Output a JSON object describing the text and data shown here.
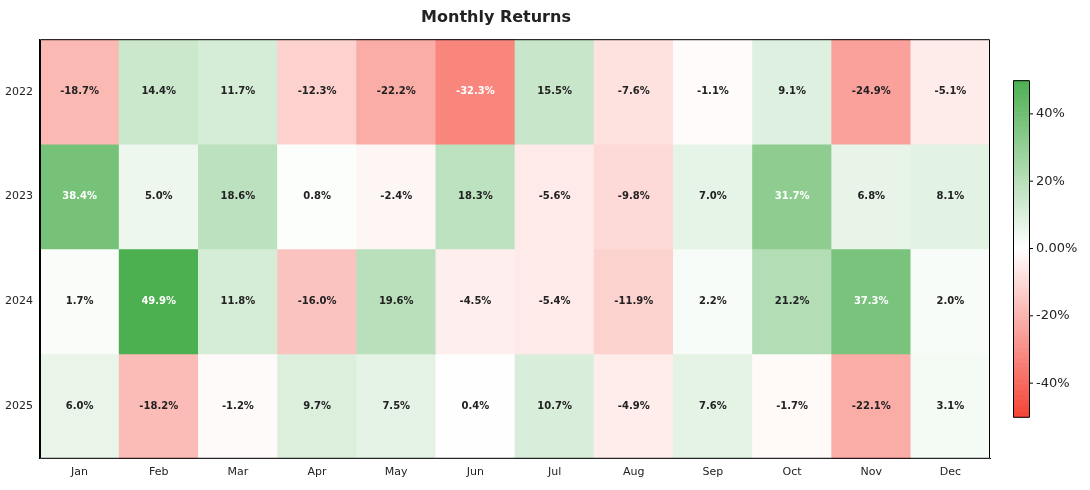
{
  "chart_data": {
    "type": "heatmap",
    "title": "Monthly Returns",
    "categories": [
      "Jan",
      "Feb",
      "Mar",
      "Apr",
      "May",
      "Jun",
      "Jul",
      "Aug",
      "Sep",
      "Oct",
      "Nov",
      "Dec"
    ],
    "y_categories": [
      "2022",
      "2023",
      "2024",
      "2025"
    ],
    "cells": [
      [
        -18.7,
        14.4,
        11.7,
        -12.3,
        -22.2,
        -32.3,
        15.5,
        -7.6,
        -1.1,
        9.1,
        -24.9,
        -5.1
      ],
      [
        38.4,
        5.0,
        18.6,
        0.8,
        -2.4,
        18.3,
        -5.6,
        -9.8,
        7.0,
        31.7,
        6.8,
        8.1
      ],
      [
        1.7,
        49.9,
        11.8,
        -16.0,
        19.6,
        -4.5,
        -5.4,
        -11.9,
        2.2,
        21.2,
        37.3,
        2.0
      ],
      [
        6.0,
        -18.2,
        -1.2,
        9.7,
        7.5,
        0.4,
        10.7,
        -4.9,
        7.6,
        -1.7,
        -22.1,
        3.1
      ]
    ],
    "cell_labels": [
      [
        "-18.7%",
        "14.4%",
        "11.7%",
        "-12.3%",
        "-22.2%",
        "-32.3%",
        "15.5%",
        "-7.6%",
        "-1.1%",
        "9.1%",
        "-24.9%",
        "-5.1%"
      ],
      [
        "38.4%",
        "5.0%",
        "18.6%",
        "0.8%",
        "-2.4%",
        "18.3%",
        "-5.6%",
        "-9.8%",
        "7.0%",
        "31.7%",
        "6.8%",
        "8.1%"
      ],
      [
        "1.7%",
        "49.9%",
        "11.8%",
        "-16.0%",
        "19.6%",
        "-4.5%",
        "-5.4%",
        "-11.9%",
        "2.2%",
        "21.2%",
        "37.3%",
        "2.0%"
      ],
      [
        "6.0%",
        "-18.2%",
        "-1.2%",
        "9.7%",
        "7.5%",
        "0.4%",
        "10.7%",
        "-4.9%",
        "7.6%",
        "-1.7%",
        "-22.1%",
        "3.1%"
      ]
    ],
    "clim": [
      -50,
      50
    ],
    "cticks": [
      {
        "value": -40,
        "label": "-40%"
      },
      {
        "value": -20,
        "label": "-20%"
      },
      {
        "value": 0,
        "label": "0.00%"
      },
      {
        "value": 20,
        "label": "20%"
      },
      {
        "value": 40,
        "label": "40%"
      }
    ],
    "grid": false
  }
}
